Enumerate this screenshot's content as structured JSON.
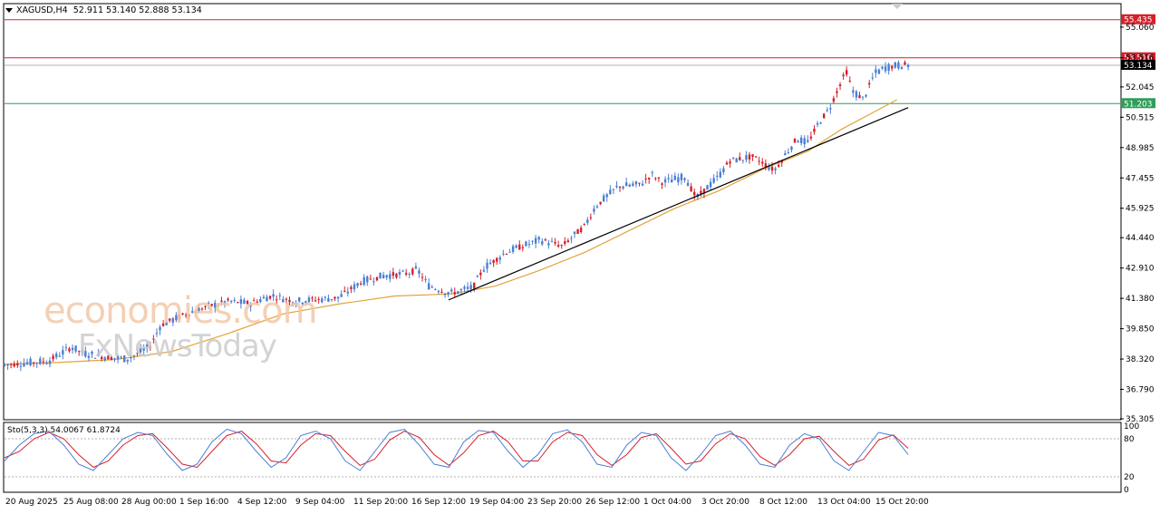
{
  "header": {
    "symbol": "XAGUSD,H4",
    "ohlc": "52.911 53.140 52.888 53.134"
  },
  "watermark": {
    "line1": "economies.com",
    "line2": "FxNewsToday"
  },
  "stochastic": {
    "label": "Sto(5,3,3) 54.0067 61.8724",
    "levels": [
      20,
      80
    ],
    "scale_labels": [
      "100",
      "80",
      "20",
      "0"
    ]
  },
  "colors": {
    "bull_candle": "#4a7fd4",
    "bear_candle": "#d6202a",
    "moving_average": "#e5a23a",
    "resistance_line": "#d6202a",
    "support_line": "#2e9e5a",
    "trendline": "#000000",
    "stoch_main": "#4a7fd4",
    "stoch_signal": "#d6202a"
  },
  "chart_data": {
    "type": "candlestick",
    "symbol": "XAGUSD",
    "timeframe": "H4",
    "ylim": [
      35.305,
      56.2
    ],
    "y_ticks": [
      "55.060",
      "53.516",
      "52.045",
      "50.515",
      "48.985",
      "47.455",
      "45.925",
      "44.440",
      "42.910",
      "41.380",
      "39.850",
      "38.320",
      "36.790",
      "35.305"
    ],
    "x_ticks": [
      "20 Aug 2025",
      "25 Aug 08:00",
      "28 Aug 00:00",
      "1 Sep 16:00",
      "4 Sep 12:00",
      "9 Sep 04:00",
      "11 Sep 20:00",
      "16 Sep 12:00",
      "19 Sep 04:00",
      "23 Sep 20:00",
      "26 Sep 12:00",
      "1 Oct 04:00",
      "3 Oct 20:00",
      "8 Oct 12:00",
      "13 Oct 04:00",
      "15 Oct 20:00"
    ],
    "horizontal_levels": [
      {
        "value": 55.435,
        "label": "55.435",
        "color": "#d6202a"
      },
      {
        "value": 53.516,
        "label": "53.516",
        "color": "#d6202a"
      },
      {
        "value": 53.134,
        "label": "53.134",
        "color": "#000000"
      },
      {
        "value": 51.203,
        "label": "51.203",
        "color": "#2e9e5a"
      }
    ],
    "trendline": {
      "from_x": 0.398,
      "from_y": 41.3,
      "to_x": 0.81,
      "to_y": 51.0
    },
    "price_path": [
      [
        0.0,
        38.0
      ],
      [
        0.02,
        38.1
      ],
      [
        0.04,
        38.2
      ],
      [
        0.06,
        38.9
      ],
      [
        0.07,
        38.6
      ],
      [
        0.09,
        38.4
      ],
      [
        0.11,
        38.3
      ],
      [
        0.13,
        38.9
      ],
      [
        0.14,
        40.0
      ],
      [
        0.16,
        40.5
      ],
      [
        0.18,
        40.9
      ],
      [
        0.2,
        41.2
      ],
      [
        0.22,
        41.1
      ],
      [
        0.24,
        41.5
      ],
      [
        0.26,
        41.2
      ],
      [
        0.28,
        41.3
      ],
      [
        0.3,
        41.4
      ],
      [
        0.32,
        42.2
      ],
      [
        0.34,
        42.5
      ],
      [
        0.36,
        42.6
      ],
      [
        0.37,
        42.8
      ],
      [
        0.38,
        42.0
      ],
      [
        0.4,
        41.6
      ],
      [
        0.42,
        41.9
      ],
      [
        0.43,
        42.9
      ],
      [
        0.45,
        43.7
      ],
      [
        0.47,
        44.1
      ],
      [
        0.48,
        44.3
      ],
      [
        0.5,
        44.0
      ],
      [
        0.52,
        45.0
      ],
      [
        0.53,
        46.0
      ],
      [
        0.55,
        47.0
      ],
      [
        0.57,
        47.1
      ],
      [
        0.58,
        47.6
      ],
      [
        0.59,
        47.2
      ],
      [
        0.61,
        47.5
      ],
      [
        0.62,
        46.4
      ],
      [
        0.64,
        47.5
      ],
      [
        0.65,
        48.3
      ],
      [
        0.67,
        48.5
      ],
      [
        0.68,
        48.2
      ],
      [
        0.69,
        47.8
      ],
      [
        0.71,
        49.4
      ],
      [
        0.72,
        49.2
      ],
      [
        0.73,
        50.2
      ],
      [
        0.74,
        51.0
      ],
      [
        0.75,
        52.3
      ],
      [
        0.755,
        52.8
      ],
      [
        0.76,
        51.8
      ],
      [
        0.77,
        51.4
      ],
      [
        0.78,
        52.7
      ],
      [
        0.79,
        53.0
      ],
      [
        0.8,
        53.1
      ],
      [
        0.81,
        53.134
      ]
    ],
    "ma_path": [
      [
        0.0,
        38.05
      ],
      [
        0.05,
        38.15
      ],
      [
        0.1,
        38.3
      ],
      [
        0.15,
        38.7
      ],
      [
        0.2,
        39.6
      ],
      [
        0.25,
        40.6
      ],
      [
        0.3,
        41.1
      ],
      [
        0.35,
        41.5
      ],
      [
        0.4,
        41.6
      ],
      [
        0.44,
        42.0
      ],
      [
        0.48,
        42.8
      ],
      [
        0.52,
        43.7
      ],
      [
        0.56,
        44.8
      ],
      [
        0.6,
        45.9
      ],
      [
        0.64,
        46.8
      ],
      [
        0.68,
        47.9
      ],
      [
        0.72,
        48.8
      ],
      [
        0.75,
        49.9
      ],
      [
        0.78,
        50.8
      ],
      [
        0.8,
        51.4
      ]
    ],
    "stoch_main": [
      45,
      70,
      88,
      92,
      70,
      40,
      30,
      55,
      80,
      90,
      85,
      55,
      30,
      40,
      75,
      95,
      88,
      60,
      35,
      50,
      85,
      92,
      80,
      45,
      30,
      60,
      90,
      95,
      70,
      40,
      35,
      75,
      93,
      90,
      60,
      35,
      55,
      88,
      94,
      75,
      40,
      35,
      70,
      90,
      85,
      50,
      30,
      55,
      85,
      92,
      70,
      40,
      35,
      70,
      88,
      80,
      45,
      30,
      60,
      90,
      85,
      55
    ],
    "stoch_signal": [
      50,
      60,
      80,
      90,
      80,
      55,
      35,
      45,
      70,
      85,
      88,
      65,
      40,
      35,
      60,
      85,
      92,
      72,
      45,
      42,
      70,
      88,
      85,
      60,
      38,
      48,
      78,
      92,
      82,
      55,
      38,
      58,
      85,
      92,
      75,
      45,
      45,
      75,
      90,
      85,
      55,
      38,
      55,
      82,
      88,
      65,
      40,
      45,
      72,
      88,
      80,
      52,
      38,
      55,
      80,
      84,
      60,
      38,
      48,
      78,
      86,
      65
    ]
  }
}
